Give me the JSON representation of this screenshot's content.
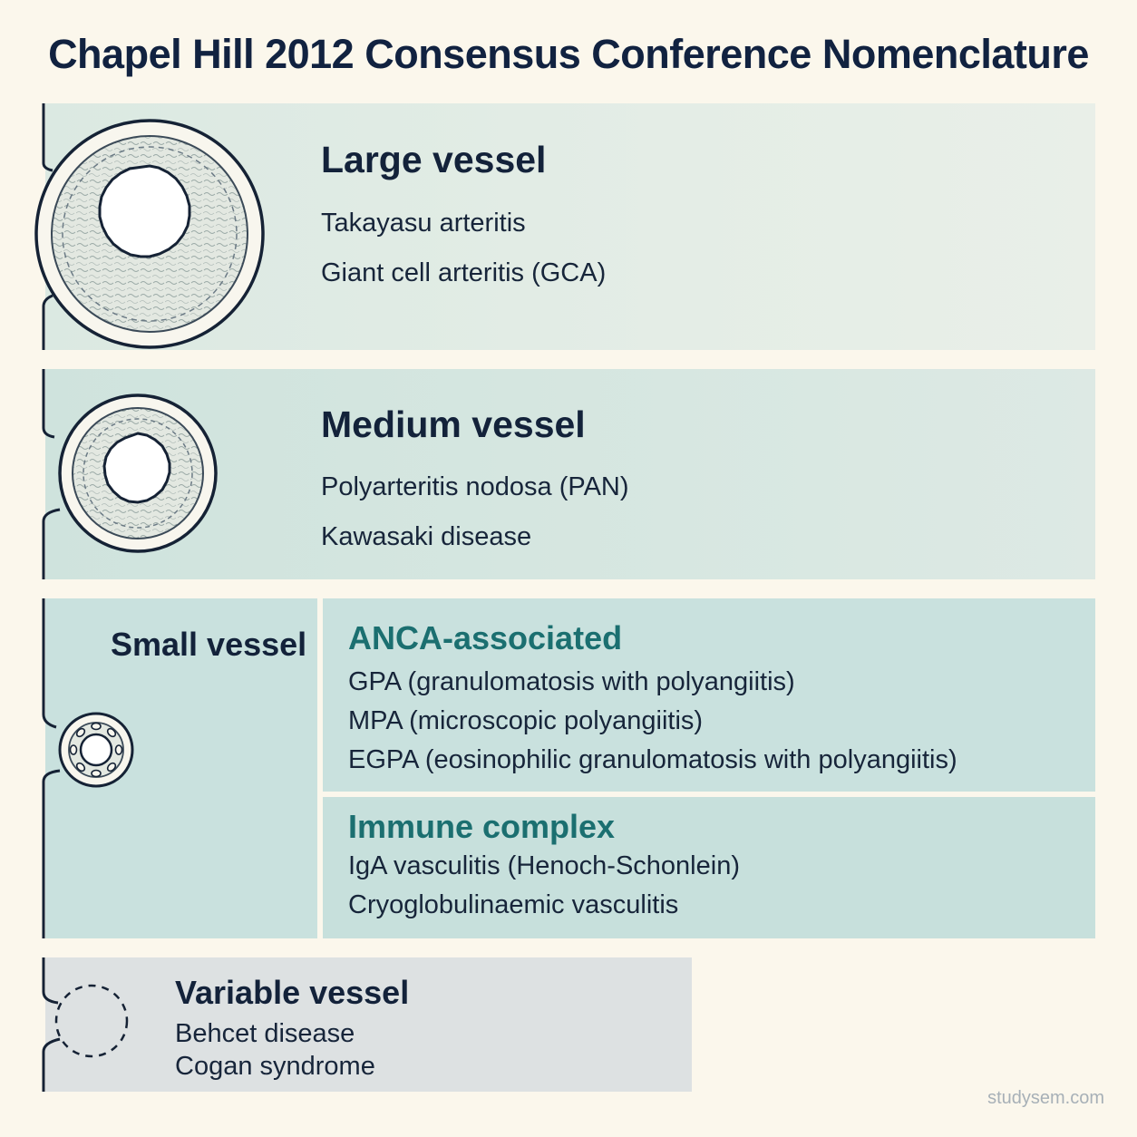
{
  "title": "Chapel Hill 2012 Consensus Conference Nomenclature",
  "categories": {
    "large": {
      "label": "Large vessel",
      "items": [
        "Takayasu arteritis",
        "Giant cell arteritis (GCA)"
      ]
    },
    "medium": {
      "label": "Medium vessel",
      "items": [
        "Polyarteritis nodosa (PAN)",
        "Kawasaki disease"
      ]
    },
    "small": {
      "label": "Small vessel",
      "anca": {
        "label": "ANCA-associated",
        "items": [
          "GPA (granulomatosis with polyangiitis)",
          "MPA (microscopic polyangiitis)",
          "EGPA (eosinophilic granulomatosis with polyangiitis)"
        ]
      },
      "immune": {
        "label": "Immune complex",
        "items": [
          "IgA vasculitis (Henoch-Schonlein)",
          "Cryoglobulinaemic vasculitis"
        ]
      }
    },
    "variable": {
      "label": "Variable vessel",
      "items": [
        "Behcet disease",
        "Cogan syndrome"
      ]
    }
  },
  "footer": "studysem.com",
  "colors": {
    "background": "#fbf7ec",
    "subheading": "#1b6f70",
    "text": "#16243a"
  }
}
